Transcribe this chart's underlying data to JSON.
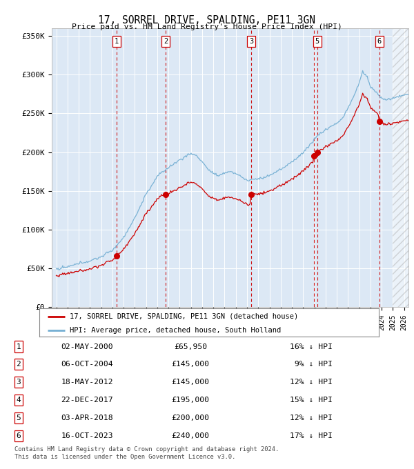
{
  "title": "17, SORREL DRIVE, SPALDING, PE11 3GN",
  "subtitle": "Price paid vs. HM Land Registry's House Price Index (HPI)",
  "sale_dates_num": [
    2000.37,
    2004.76,
    2012.38,
    2017.97,
    2018.26,
    2023.79
  ],
  "sale_prices": [
    65950,
    145000,
    145000,
    195000,
    200000,
    240000
  ],
  "sale_labels": [
    "1",
    "2",
    "3",
    "4",
    "5",
    "6"
  ],
  "chart_label_indices": [
    0,
    1,
    2,
    4,
    5
  ],
  "hpi_color": "#74afd3",
  "sale_color": "#cc0000",
  "vline_color": "#cc0000",
  "plot_bg": "#dce8f5",
  "legend_entries": [
    "17, SORREL DRIVE, SPALDING, PE11 3GN (detached house)",
    "HPI: Average price, detached house, South Holland"
  ],
  "table_data": [
    [
      "1",
      "02-MAY-2000",
      "£65,950",
      "16% ↓ HPI"
    ],
    [
      "2",
      "06-OCT-2004",
      "£145,000",
      " 9% ↓ HPI"
    ],
    [
      "3",
      "18-MAY-2012",
      "£145,000",
      "12% ↓ HPI"
    ],
    [
      "4",
      "22-DEC-2017",
      "£195,000",
      "15% ↓ HPI"
    ],
    [
      "5",
      "03-APR-2018",
      "£200,000",
      "12% ↓ HPI"
    ],
    [
      "6",
      "16-OCT-2023",
      "£240,000",
      "17% ↓ HPI"
    ]
  ],
  "footnote": "Contains HM Land Registry data © Crown copyright and database right 2024.\nThis data is licensed under the Open Government Licence v3.0.",
  "ylim": [
    0,
    360000
  ],
  "xlim_start": 1994.6,
  "xlim_end": 2026.4,
  "yticks": [
    0,
    50000,
    100000,
    150000,
    200000,
    250000,
    300000,
    350000
  ],
  "ytick_labels": [
    "£0",
    "£50K",
    "£100K",
    "£150K",
    "£200K",
    "£250K",
    "£300K",
    "£350K"
  ],
  "hatch_start": 2025.0,
  "fig_width": 6.0,
  "fig_height": 6.8
}
